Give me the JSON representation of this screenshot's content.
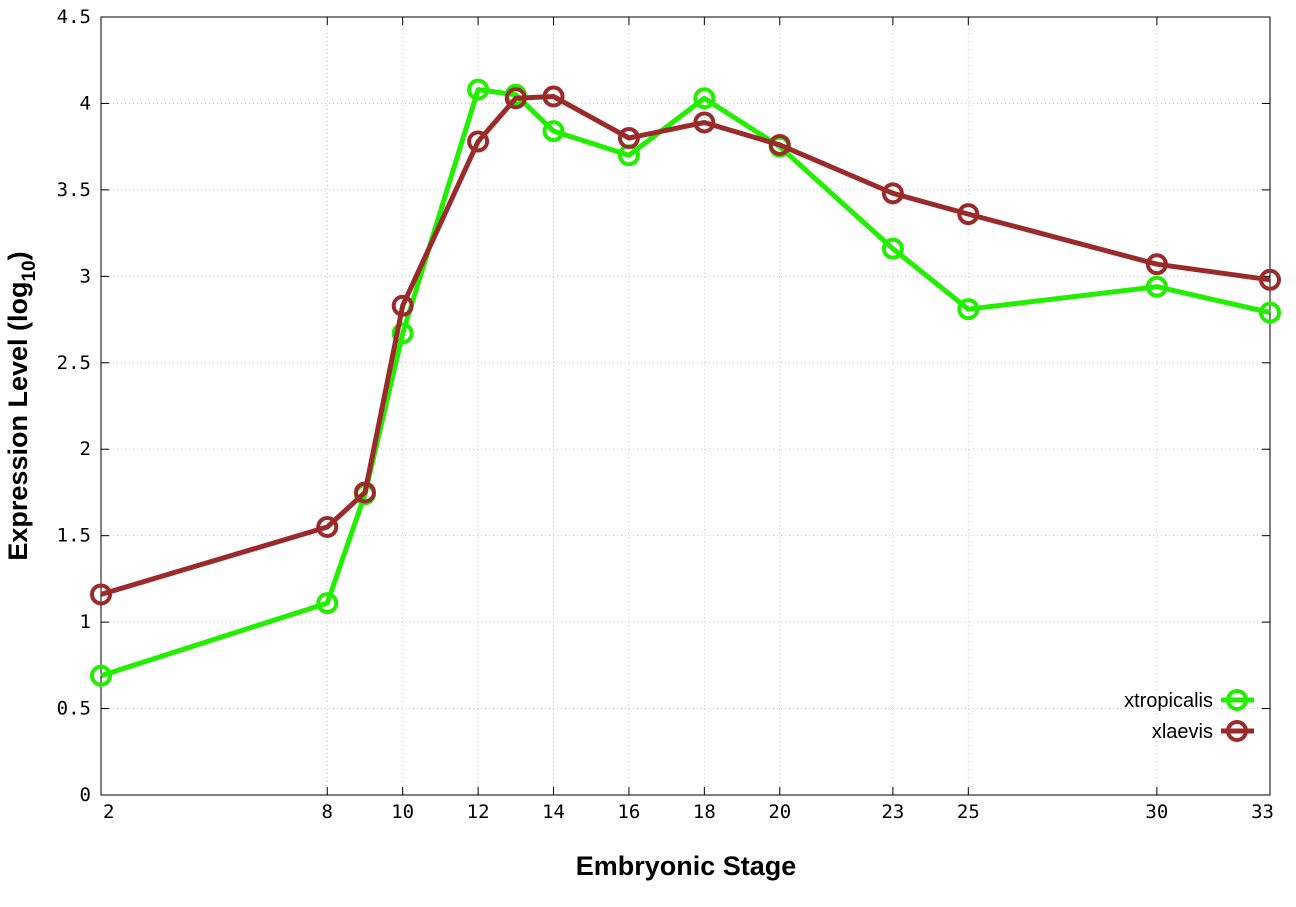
{
  "chart_data": {
    "type": "line",
    "xlabel": "Embryonic Stage",
    "ylabel_main": "Expression Level (log",
    "ylabel_sub": "10",
    "ylabel_close": ")",
    "x": [
      2,
      8,
      9,
      10,
      12,
      13,
      14,
      16,
      18,
      20,
      23,
      25,
      30,
      33
    ],
    "x_ticks": [
      2,
      8,
      10,
      12,
      14,
      16,
      18,
      20,
      23,
      25,
      30,
      33
    ],
    "x_tick_labels": [
      "2",
      "8",
      "10",
      "12",
      "14",
      "16",
      "18",
      "20",
      "23",
      "25",
      "30",
      "33"
    ],
    "xlim": [
      2,
      33
    ],
    "y_ticks": [
      0,
      0.5,
      1,
      1.5,
      2,
      2.5,
      3,
      3.5,
      4,
      4.5
    ],
    "y_tick_labels": [
      "0",
      "0.5",
      "1",
      "1.5",
      "2",
      "2.5",
      "3",
      "3.5",
      "4",
      "4.5"
    ],
    "ylim": [
      0,
      4.5
    ],
    "grid": true,
    "legend_position": "bottom-right",
    "series": [
      {
        "name": "xtropicalis",
        "color": "#22ee00",
        "values": [
          0.69,
          1.11,
          1.74,
          2.67,
          4.08,
          4.05,
          3.84,
          3.7,
          4.03,
          3.75,
          3.16,
          2.81,
          2.94,
          2.79
        ]
      },
      {
        "name": "xlaevis",
        "color": "#9b2a2a",
        "values": [
          1.16,
          1.55,
          1.75,
          2.83,
          3.78,
          4.03,
          4.04,
          3.8,
          3.89,
          3.76,
          3.48,
          3.36,
          3.07,
          2.98
        ]
      }
    ]
  }
}
